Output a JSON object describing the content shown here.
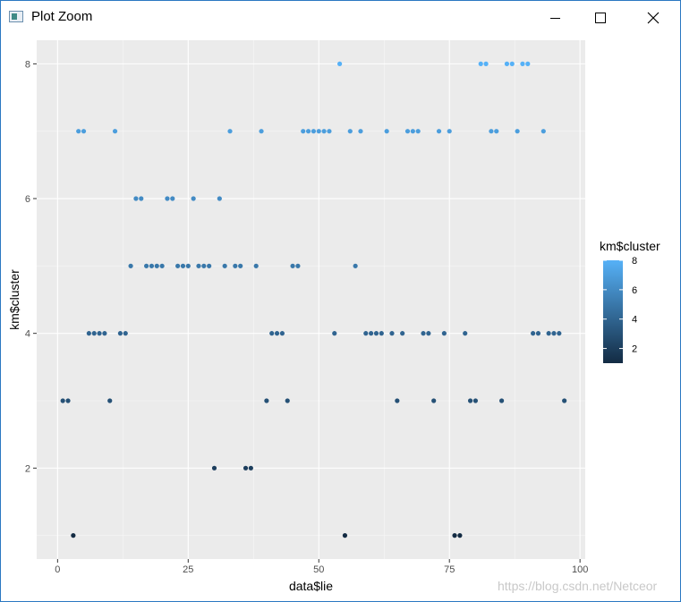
{
  "window": {
    "title": "Plot Zoom",
    "minimize_icon": "minimize-icon",
    "maximize_icon": "maximize-icon",
    "close_icon": "close-icon"
  },
  "colors": {
    "panel_bg": "#ebebeb",
    "grid_major": "#ffffff",
    "low": "#132B43",
    "high": "#56B1F7"
  },
  "watermark": "https://blog.csdn.net/Netceor",
  "chart_data": {
    "type": "scatter",
    "xlabel": "data$lie",
    "ylabel": "km$cluster",
    "xlim": [
      -4,
      101
    ],
    "ylim": [
      0.65,
      8.35
    ],
    "xticks": [
      0,
      25,
      50,
      75,
      100
    ],
    "yticks": [
      2,
      4,
      6,
      8
    ],
    "grid": true,
    "legend": {
      "title": "km$cluster",
      "position": "right",
      "ticks": [
        2,
        4,
        6,
        8
      ],
      "range": [
        1,
        8
      ]
    },
    "x": [
      1,
      2,
      3,
      4,
      5,
      6,
      7,
      8,
      9,
      10,
      11,
      12,
      13,
      14,
      15,
      16,
      17,
      18,
      19,
      20,
      21,
      22,
      23,
      24,
      25,
      26,
      27,
      28,
      29,
      30,
      31,
      32,
      33,
      34,
      35,
      36,
      37,
      38,
      39,
      40,
      41,
      42,
      43,
      44,
      45,
      46,
      47,
      48,
      49,
      50,
      51,
      52,
      53,
      54,
      55,
      56,
      57,
      58,
      59,
      60,
      61,
      62,
      63,
      64,
      65,
      66,
      67,
      68,
      69,
      70,
      71,
      72,
      73,
      74,
      75,
      76,
      77,
      78,
      79,
      80,
      81,
      82,
      83,
      84,
      85,
      86,
      87,
      88,
      89,
      90,
      91,
      92,
      93,
      94,
      95,
      96,
      97
    ],
    "y": [
      3,
      3,
      1,
      7,
      7,
      4,
      4,
      4,
      4,
      3,
      7,
      4,
      4,
      5,
      6,
      6,
      5,
      5,
      5,
      5,
      6,
      6,
      5,
      5,
      5,
      6,
      5,
      5,
      5,
      2,
      6,
      5,
      7,
      5,
      5,
      2,
      2,
      5,
      7,
      3,
      4,
      4,
      4,
      3,
      5,
      5,
      7,
      7,
      7,
      7,
      7,
      7,
      4,
      8,
      1,
      7,
      5,
      7,
      4,
      4,
      4,
      4,
      7,
      4,
      3,
      4,
      7,
      7,
      7,
      4,
      4,
      3,
      7,
      4,
      7,
      1,
      1,
      4,
      3,
      3,
      8,
      8,
      7,
      7,
      3,
      8,
      8,
      7,
      8,
      8,
      4,
      4,
      7,
      4,
      4,
      4,
      3
    ]
  }
}
